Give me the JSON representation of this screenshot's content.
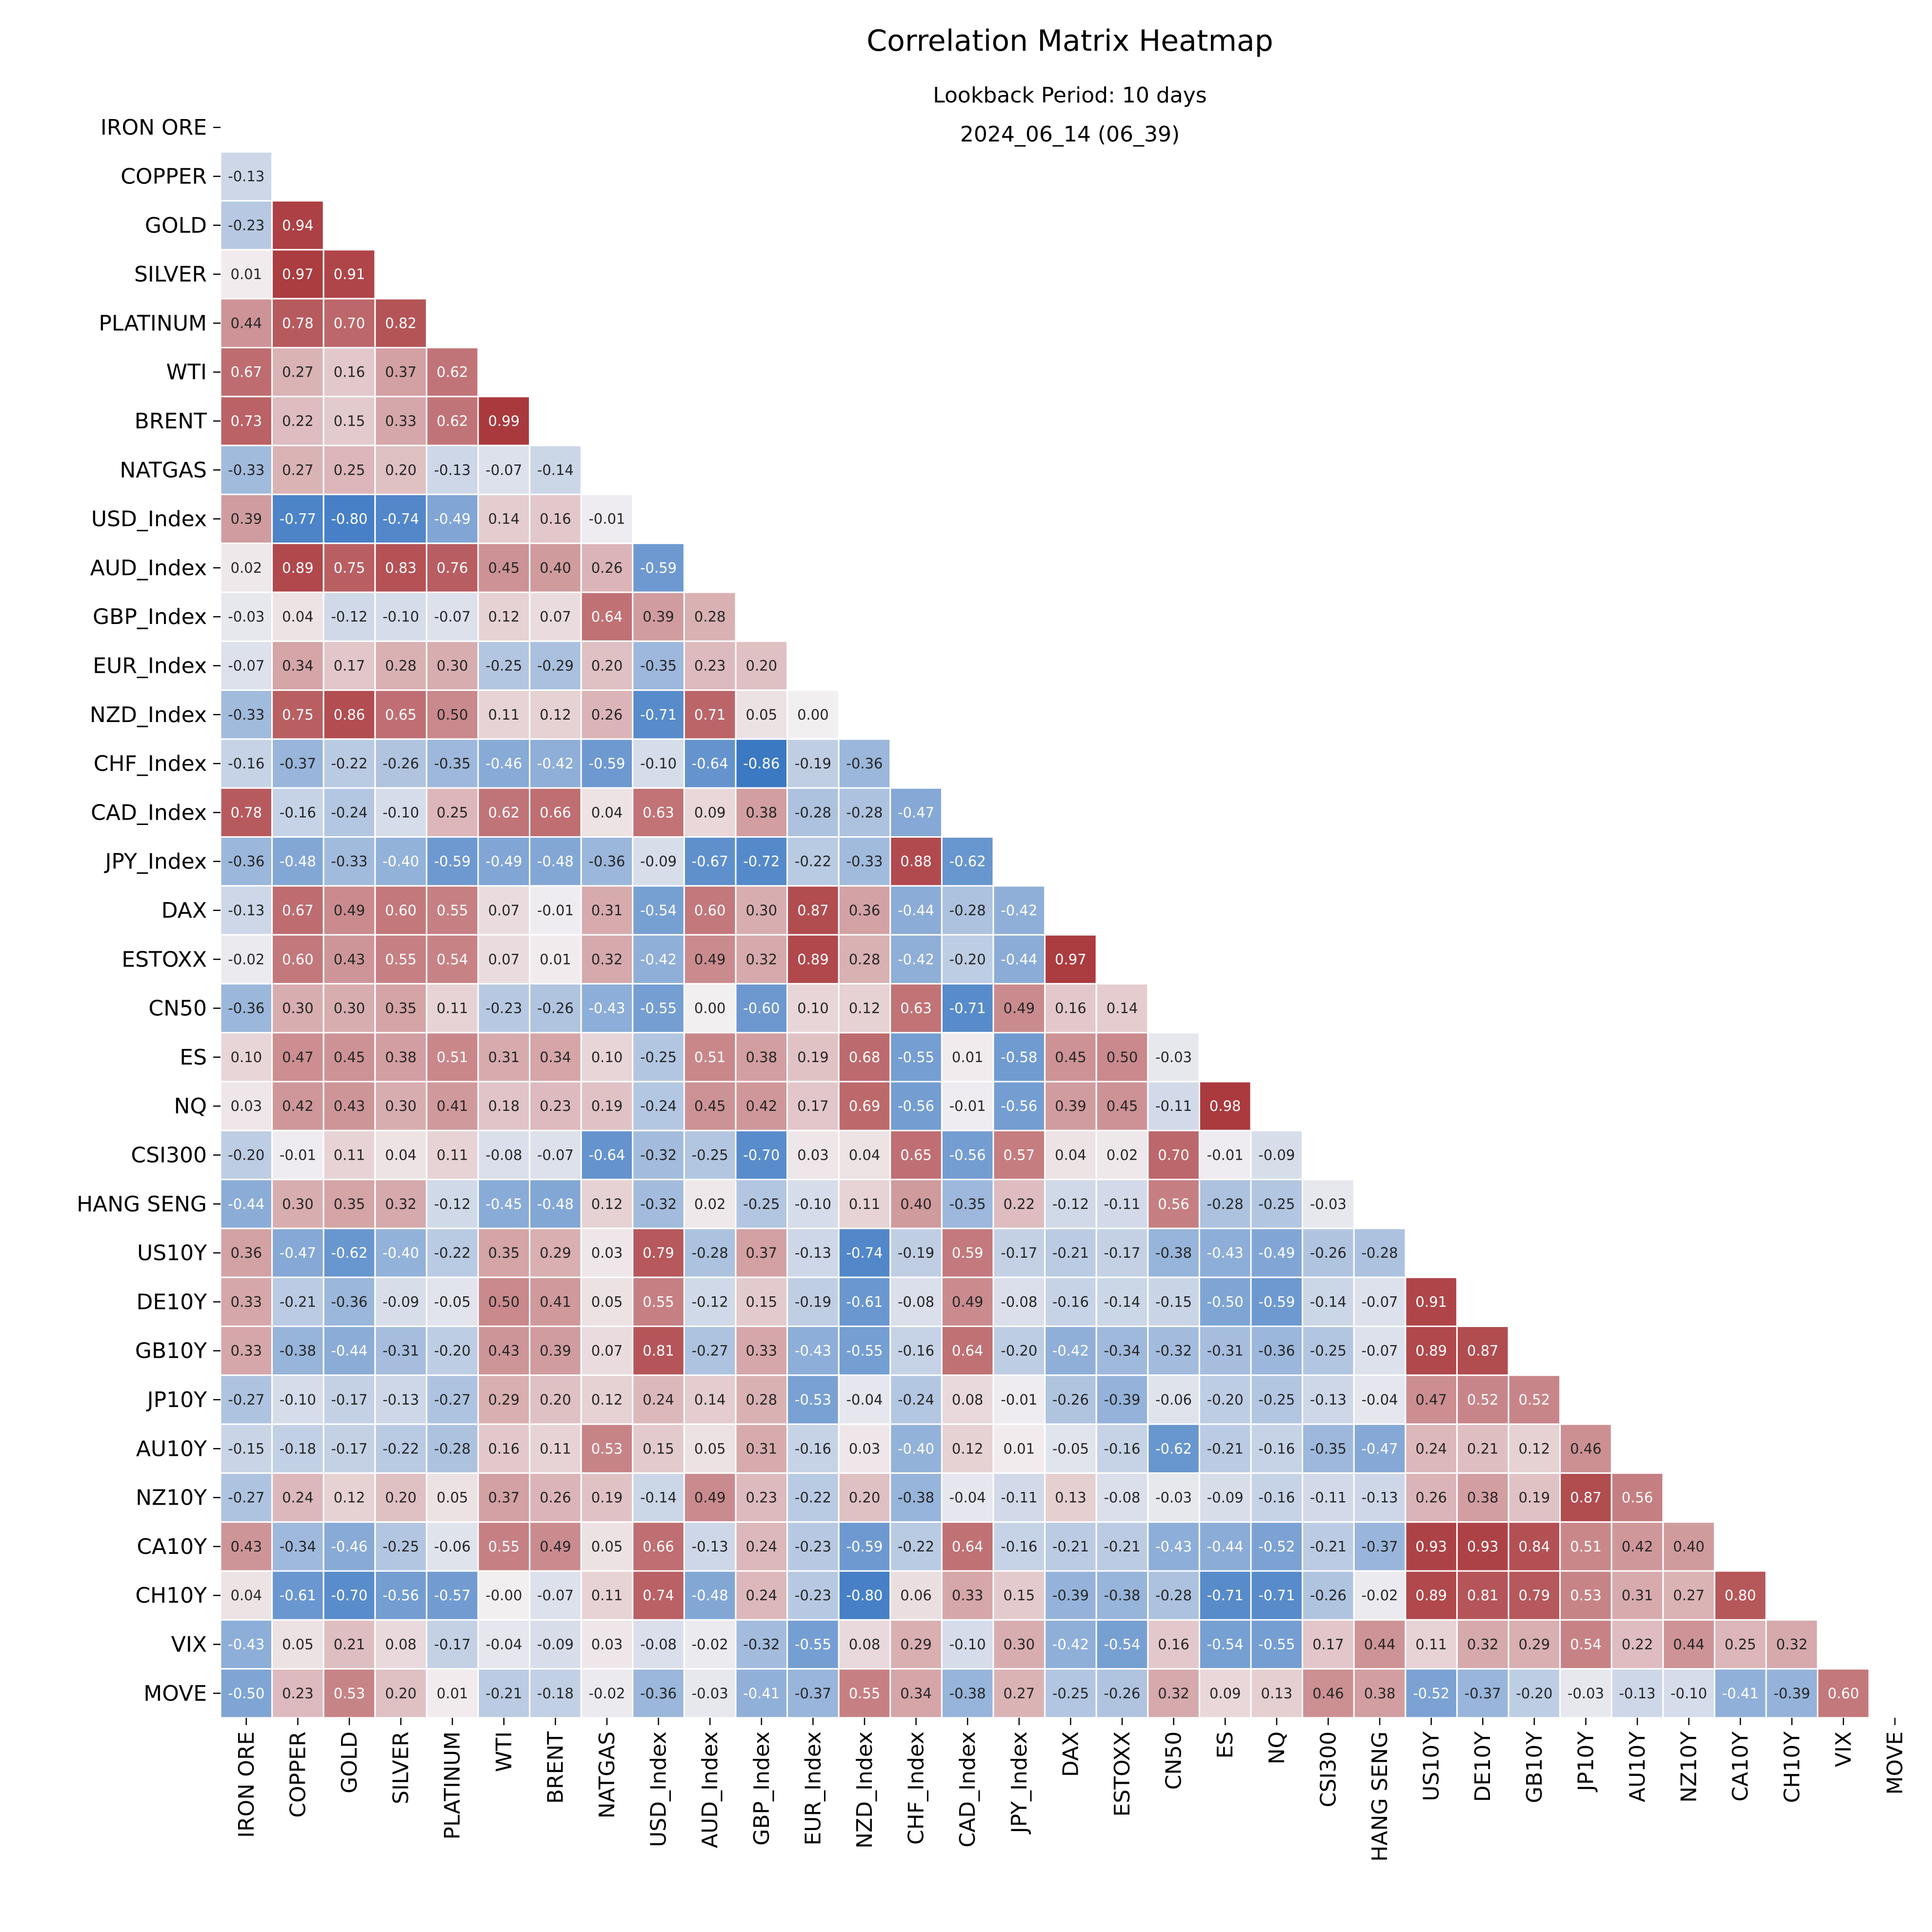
{
  "chart_data": {
    "type": "heatmap",
    "title": "Correlation Matrix Heatmap",
    "subtitle_lines": [
      "Lookback Period: 10 days",
      "2024_06_14 (06_39)"
    ],
    "colormap": "diverging blue-white-red",
    "color_range": [
      -1,
      1
    ],
    "colors": {
      "negative": "#2369bd",
      "center": "#f2eff1",
      "positive": "#a9373b"
    },
    "mask": "upper triangle including diagonal",
    "labels": [
      "IRON ORE",
      "COPPER",
      "GOLD",
      "SILVER",
      "PLATINUM",
      "WTI",
      "BRENT",
      "NATGAS",
      "USD_Index",
      "AUD_Index",
      "GBP_Index",
      "EUR_Index",
      "NZD_Index",
      "CHF_Index",
      "CAD_Index",
      "JPY_Index",
      "DAX",
      "ESTOXX",
      "CN50",
      "ES",
      "NQ",
      "CSI300",
      "HANG SENG",
      "US10Y",
      "DE10Y",
      "GB10Y",
      "JP10Y",
      "AU10Y",
      "NZ10Y",
      "CA10Y",
      "CH10Y",
      "VIX",
      "MOVE"
    ],
    "lower_triangle": [
      [],
      [
        -0.13
      ],
      [
        -0.23,
        0.94
      ],
      [
        0.01,
        0.97,
        0.91
      ],
      [
        0.44,
        0.78,
        0.7,
        0.82
      ],
      [
        0.67,
        0.27,
        0.16,
        0.37,
        0.62
      ],
      [
        0.73,
        0.22,
        0.15,
        0.33,
        0.62,
        0.99
      ],
      [
        -0.33,
        0.27,
        0.25,
        0.2,
        -0.13,
        -0.07,
        -0.14
      ],
      [
        0.39,
        -0.77,
        -0.8,
        -0.74,
        -0.49,
        0.14,
        0.16,
        -0.01
      ],
      [
        0.02,
        0.89,
        0.75,
        0.83,
        0.76,
        0.45,
        0.4,
        0.26,
        -0.59
      ],
      [
        -0.03,
        0.04,
        -0.12,
        -0.1,
        -0.07,
        0.12,
        0.07,
        0.64,
        0.39,
        0.28
      ],
      [
        -0.07,
        0.34,
        0.17,
        0.28,
        0.3,
        -0.25,
        -0.29,
        0.2,
        -0.35,
        0.23,
        0.2
      ],
      [
        -0.33,
        0.75,
        0.86,
        0.65,
        0.5,
        0.11,
        0.12,
        0.26,
        -0.71,
        0.71,
        0.05,
        0.0
      ],
      [
        -0.16,
        -0.37,
        -0.22,
        -0.26,
        -0.35,
        -0.46,
        -0.42,
        -0.59,
        -0.1,
        -0.64,
        -0.86,
        -0.19,
        -0.36
      ],
      [
        0.78,
        -0.16,
        -0.24,
        -0.1,
        0.25,
        0.62,
        0.66,
        0.04,
        0.63,
        0.09,
        0.38,
        -0.28,
        -0.28,
        -0.47
      ],
      [
        -0.36,
        -0.48,
        -0.33,
        -0.4,
        -0.59,
        -0.49,
        -0.48,
        -0.36,
        -0.09,
        -0.67,
        -0.72,
        -0.22,
        -0.33,
        0.88,
        -0.62
      ],
      [
        -0.13,
        0.67,
        0.49,
        0.6,
        0.55,
        0.07,
        -0.01,
        0.31,
        -0.54,
        0.6,
        0.3,
        0.87,
        0.36,
        -0.44,
        -0.28,
        -0.42
      ],
      [
        -0.02,
        0.6,
        0.43,
        0.55,
        0.54,
        0.07,
        0.01,
        0.32,
        -0.42,
        0.49,
        0.32,
        0.89,
        0.28,
        -0.42,
        -0.2,
        -0.44,
        0.97
      ],
      [
        -0.36,
        0.3,
        0.3,
        0.35,
        0.11,
        -0.23,
        -0.26,
        -0.43,
        -0.55,
        0.0,
        -0.6,
        0.1,
        0.12,
        0.63,
        -0.71,
        0.49,
        0.16,
        0.14
      ],
      [
        0.1,
        0.47,
        0.45,
        0.38,
        0.51,
        0.31,
        0.34,
        0.1,
        -0.25,
        0.51,
        0.38,
        0.19,
        0.68,
        -0.55,
        0.01,
        -0.58,
        0.45,
        0.5,
        -0.03
      ],
      [
        0.03,
        0.42,
        0.43,
        0.3,
        0.41,
        0.18,
        0.23,
        0.19,
        -0.24,
        0.45,
        0.42,
        0.17,
        0.69,
        -0.56,
        -0.01,
        -0.56,
        0.39,
        0.45,
        -0.11,
        0.98
      ],
      [
        -0.2,
        -0.01,
        0.11,
        0.04,
        0.11,
        -0.08,
        -0.07,
        -0.64,
        -0.32,
        -0.25,
        -0.7,
        0.03,
        0.04,
        0.65,
        -0.56,
        0.57,
        0.04,
        0.02,
        0.7,
        -0.01,
        -0.09
      ],
      [
        -0.44,
        0.3,
        0.35,
        0.32,
        -0.12,
        -0.45,
        -0.48,
        0.12,
        -0.32,
        0.02,
        -0.25,
        -0.1,
        0.11,
        0.4,
        -0.35,
        0.22,
        -0.12,
        -0.11,
        0.56,
        -0.28,
        -0.25,
        -0.03
      ],
      [
        0.36,
        -0.47,
        -0.62,
        -0.4,
        -0.22,
        0.35,
        0.29,
        0.03,
        0.79,
        -0.28,
        0.37,
        -0.13,
        -0.74,
        -0.19,
        0.59,
        -0.17,
        -0.21,
        -0.17,
        -0.38,
        -0.43,
        -0.49,
        -0.26,
        -0.28
      ],
      [
        0.33,
        -0.21,
        -0.36,
        -0.09,
        -0.05,
        0.5,
        0.41,
        0.05,
        0.55,
        -0.12,
        0.15,
        -0.19,
        -0.61,
        -0.08,
        0.49,
        -0.08,
        -0.16,
        -0.14,
        -0.15,
        -0.5,
        -0.59,
        -0.14,
        -0.07,
        0.91
      ],
      [
        0.33,
        -0.38,
        -0.44,
        -0.31,
        -0.2,
        0.43,
        0.39,
        0.07,
        0.81,
        -0.27,
        0.33,
        -0.43,
        -0.55,
        -0.16,
        0.64,
        -0.2,
        -0.42,
        -0.34,
        -0.32,
        -0.31,
        -0.36,
        -0.25,
        -0.07,
        0.89,
        0.87
      ],
      [
        -0.27,
        -0.1,
        -0.17,
        -0.13,
        -0.27,
        0.29,
        0.2,
        0.12,
        0.24,
        0.14,
        0.28,
        -0.53,
        -0.04,
        -0.24,
        0.08,
        -0.01,
        -0.26,
        -0.39,
        -0.06,
        -0.2,
        -0.25,
        -0.13,
        -0.04,
        0.47,
        0.52,
        0.52
      ],
      [
        -0.15,
        -0.18,
        -0.17,
        -0.22,
        -0.28,
        0.16,
        0.11,
        0.53,
        0.15,
        0.05,
        0.31,
        -0.16,
        0.03,
        -0.4,
        0.12,
        0.01,
        -0.05,
        -0.16,
        -0.62,
        -0.21,
        -0.16,
        -0.35,
        -0.47,
        0.24,
        0.21,
        0.12,
        0.46
      ],
      [
        -0.27,
        0.24,
        0.12,
        0.2,
        0.05,
        0.37,
        0.26,
        0.19,
        -0.14,
        0.49,
        0.23,
        -0.22,
        0.2,
        -0.38,
        -0.04,
        -0.11,
        0.13,
        -0.08,
        -0.03,
        -0.09,
        -0.16,
        -0.11,
        -0.13,
        0.26,
        0.38,
        0.19,
        0.87,
        0.56
      ],
      [
        0.43,
        -0.34,
        -0.46,
        -0.25,
        -0.06,
        0.55,
        0.49,
        0.05,
        0.66,
        -0.13,
        0.24,
        -0.23,
        -0.59,
        -0.22,
        0.64,
        -0.16,
        -0.21,
        -0.21,
        -0.43,
        -0.44,
        -0.52,
        -0.21,
        -0.37,
        0.93,
        0.93,
        0.84,
        0.51,
        0.42,
        0.4
      ],
      [
        0.04,
        -0.61,
        -0.7,
        -0.56,
        -0.57,
        -0.0,
        -0.07,
        0.11,
        0.74,
        -0.48,
        0.24,
        -0.23,
        -0.8,
        0.06,
        0.33,
        0.15,
        -0.39,
        -0.38,
        -0.28,
        -0.71,
        -0.71,
        -0.26,
        -0.02,
        0.89,
        0.81,
        0.79,
        0.53,
        0.31,
        0.27,
        0.8
      ],
      [
        -0.43,
        0.05,
        0.21,
        0.08,
        -0.17,
        -0.04,
        -0.09,
        0.03,
        -0.08,
        -0.02,
        -0.32,
        -0.55,
        0.08,
        0.29,
        -0.1,
        0.3,
        -0.42,
        -0.54,
        0.16,
        -0.54,
        -0.55,
        0.17,
        0.44,
        0.11,
        0.32,
        0.29,
        0.54,
        0.22,
        0.44,
        0.25,
        0.32
      ],
      [
        -0.5,
        0.23,
        0.53,
        0.2,
        0.01,
        -0.21,
        -0.18,
        -0.02,
        -0.36,
        -0.03,
        -0.41,
        -0.37,
        0.55,
        0.34,
        -0.38,
        0.27,
        -0.25,
        -0.26,
        0.32,
        0.09,
        0.13,
        0.46,
        0.38,
        -0.52,
        -0.37,
        -0.2,
        -0.03,
        -0.13,
        -0.1,
        -0.41,
        -0.39,
        0.6
      ]
    ]
  }
}
